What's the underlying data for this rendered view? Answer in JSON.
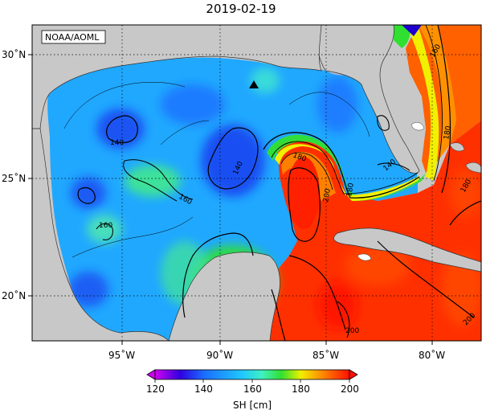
{
  "title": "2019-02-19",
  "credit": "NOAA/AOML",
  "colorbar": {
    "label": "SH [cm]",
    "ticks": [
      "120",
      "140",
      "160",
      "180",
      "200"
    ],
    "min": 120,
    "max": 200
  },
  "axes": {
    "lon_ticks": [
      "95˚W",
      "90˚W",
      "85˚W",
      "80˚W"
    ],
    "lat_ticks": [
      "30˚N",
      "25˚N",
      "20˚N"
    ]
  },
  "contour_labels": [
    "140",
    "140",
    "140",
    "160",
    "160",
    "180",
    "180",
    "180",
    "200",
    "200",
    "200",
    "180",
    "160"
  ],
  "colors": {
    "land": "#c8c8c8",
    "coast": "#333333",
    "scale": [
      "#d000f0",
      "#3000e0",
      "#1a6cff",
      "#20c8ff",
      "#40f0c0",
      "#30e030",
      "#f0f000",
      "#ff8000",
      "#ff1000"
    ]
  },
  "marker": "triangle-marker"
}
